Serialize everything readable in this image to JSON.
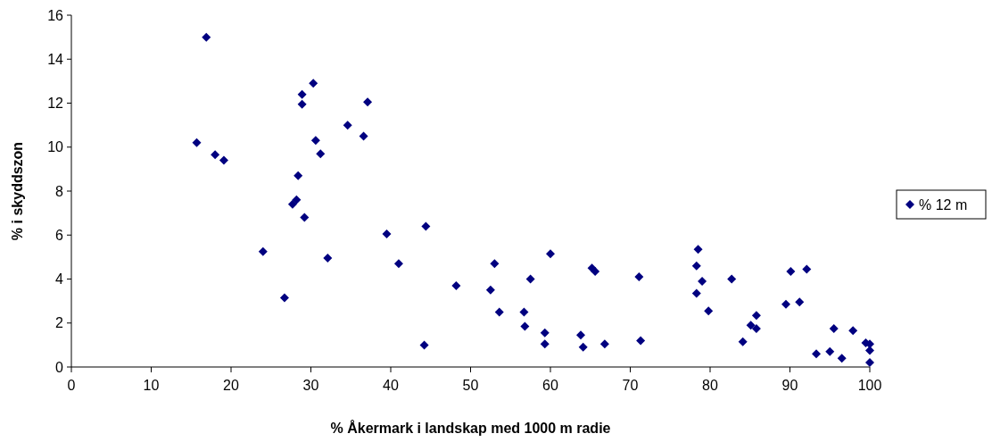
{
  "chart_data": {
    "type": "scatter",
    "xlabel": "% Åkermark i landskap med 1000 m radie",
    "ylabel": "% i skyddszon",
    "xlim": [
      0,
      100
    ],
    "xticks": [
      0,
      10,
      20,
      30,
      40,
      50,
      60,
      70,
      80,
      90,
      100
    ],
    "ylim": [
      0,
      16
    ],
    "yticks": [
      0,
      2,
      4,
      6,
      8,
      10,
      12,
      14,
      16
    ],
    "grid": false,
    "legend": "right",
    "marker": "diamond",
    "series": [
      {
        "name": "% 12 m",
        "color": "#000080",
        "x": [
          16.9,
          15.7,
          18.0,
          19.1,
          30.3,
          28.9,
          28.9,
          37.1,
          34.6,
          36.6,
          30.6,
          31.2,
          28.4,
          28.2,
          27.7,
          29.2,
          24.0,
          32.1,
          26.7,
          39.5,
          41.0,
          44.4,
          44.2,
          48.2,
          53.0,
          52.5,
          53.6,
          57.5,
          56.7,
          56.8,
          60.0,
          59.3,
          59.3,
          63.8,
          64.1,
          65.2,
          65.6,
          66.8,
          71.1,
          71.3,
          78.5,
          78.3,
          79.0,
          78.3,
          79.8,
          82.7,
          85.8,
          85.1,
          85.8,
          84.1,
          90.1,
          92.1,
          89.5,
          91.2,
          95.5,
          97.9,
          93.3,
          95.0,
          96.5,
          99.5,
          100,
          100,
          100
        ],
        "values": [
          15.0,
          10.2,
          9.65,
          9.4,
          12.9,
          12.4,
          11.95,
          12.05,
          11.0,
          10.5,
          10.3,
          9.7,
          8.7,
          7.6,
          7.4,
          6.8,
          5.25,
          4.95,
          3.15,
          6.05,
          4.7,
          6.4,
          1.0,
          3.7,
          4.7,
          3.5,
          2.5,
          4.0,
          2.5,
          1.85,
          5.15,
          1.55,
          1.05,
          1.45,
          0.9,
          4.5,
          4.35,
          1.05,
          4.1,
          1.2,
          5.35,
          4.6,
          3.9,
          3.35,
          2.55,
          4.0,
          2.35,
          1.9,
          1.75,
          1.15,
          4.35,
          4.45,
          2.85,
          2.95,
          1.75,
          1.65,
          0.6,
          0.7,
          0.4,
          1.1,
          1.05,
          0.75,
          0.2
        ]
      }
    ]
  }
}
